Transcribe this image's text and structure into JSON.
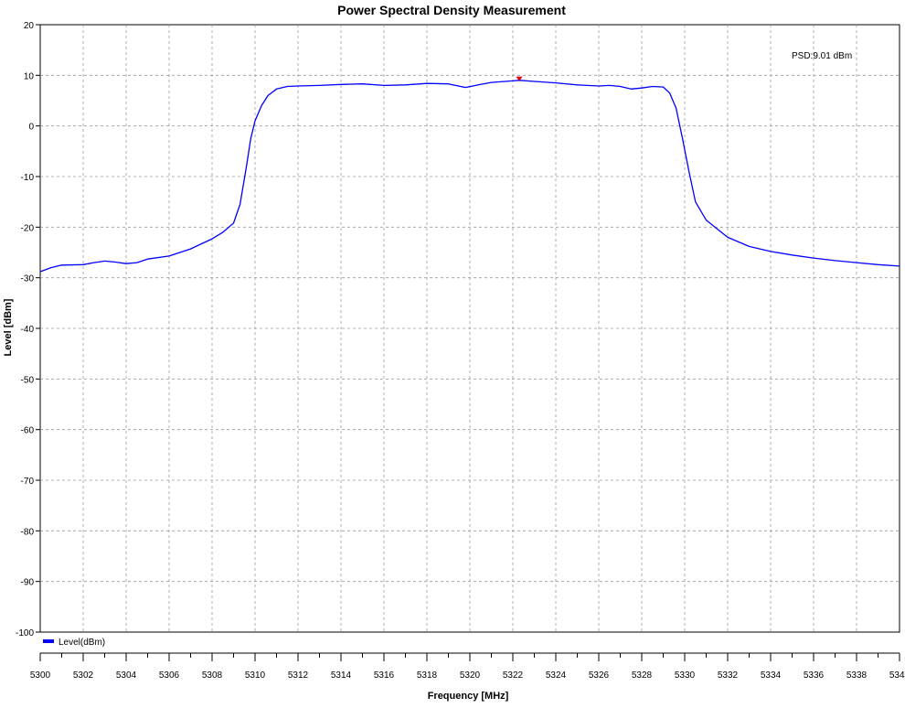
{
  "chart_data": {
    "type": "line",
    "title": "Power Spectral Density Measurement",
    "xlabel": "Frequency [MHz]",
    "ylabel": "Level [dBm]",
    "xlim": [
      5300,
      5340
    ],
    "ylim": [
      -100,
      20
    ],
    "x_ticks": [
      "5300",
      "5302",
      "5304",
      "5306",
      "5308",
      "5310",
      "5312",
      "5314",
      "5316",
      "5318",
      "5320",
      "5322",
      "5324",
      "5326",
      "5328",
      "5330",
      "5332",
      "5334",
      "5336",
      "5338",
      "5340"
    ],
    "y_ticks": [
      "20",
      "10",
      "0",
      "-10",
      "-20",
      "-30",
      "-40",
      "-50",
      "-60",
      "-70",
      "-80",
      "-90",
      "-100"
    ],
    "grid": true,
    "legend_position": "bottom-left",
    "series": [
      {
        "name": "Level(dBm)",
        "color": "#0000ff",
        "x": [
          5300,
          5300.5,
          5301,
          5302,
          5302.5,
          5303,
          5303.5,
          5304,
          5304.5,
          5305,
          5306,
          5307,
          5308,
          5308.5,
          5309,
          5309.3,
          5309.6,
          5309.8,
          5310,
          5310.3,
          5310.6,
          5311,
          5311.5,
          5312,
          5313,
          5314,
          5315,
          5316,
          5317,
          5318,
          5319,
          5319.8,
          5320.5,
          5321,
          5322,
          5322.3,
          5323,
          5324,
          5325,
          5326,
          5326.5,
          5327,
          5327.5,
          5328,
          5328.5,
          5329,
          5329.3,
          5329.6,
          5329.9,
          5330.2,
          5330.5,
          5331,
          5332,
          5333,
          5334,
          5335,
          5336,
          5337,
          5338,
          5339,
          5340
        ],
        "y": [
          -28.8,
          -28.0,
          -27.5,
          -27.4,
          -27.0,
          -26.7,
          -26.9,
          -27.2,
          -27.0,
          -26.3,
          -25.7,
          -24.3,
          -22.3,
          -21.0,
          -19.2,
          -15.5,
          -8.0,
          -2.5,
          1.0,
          4.0,
          6.0,
          7.3,
          7.8,
          7.9,
          8.0,
          8.2,
          8.3,
          8.0,
          8.1,
          8.4,
          8.3,
          7.6,
          8.2,
          8.6,
          8.9,
          9.01,
          8.8,
          8.5,
          8.1,
          7.9,
          8.0,
          7.8,
          7.3,
          7.5,
          7.8,
          7.7,
          6.5,
          3.5,
          -2.5,
          -9.0,
          -15.0,
          -18.6,
          -22.0,
          -23.8,
          -24.8,
          -25.5,
          -26.1,
          -26.6,
          -27.0,
          -27.4,
          -27.7
        ]
      }
    ],
    "marker": {
      "x": 5322.3,
      "y": 9.01,
      "label": "PSD:9.01 dBm",
      "color": "#dd0000"
    }
  }
}
